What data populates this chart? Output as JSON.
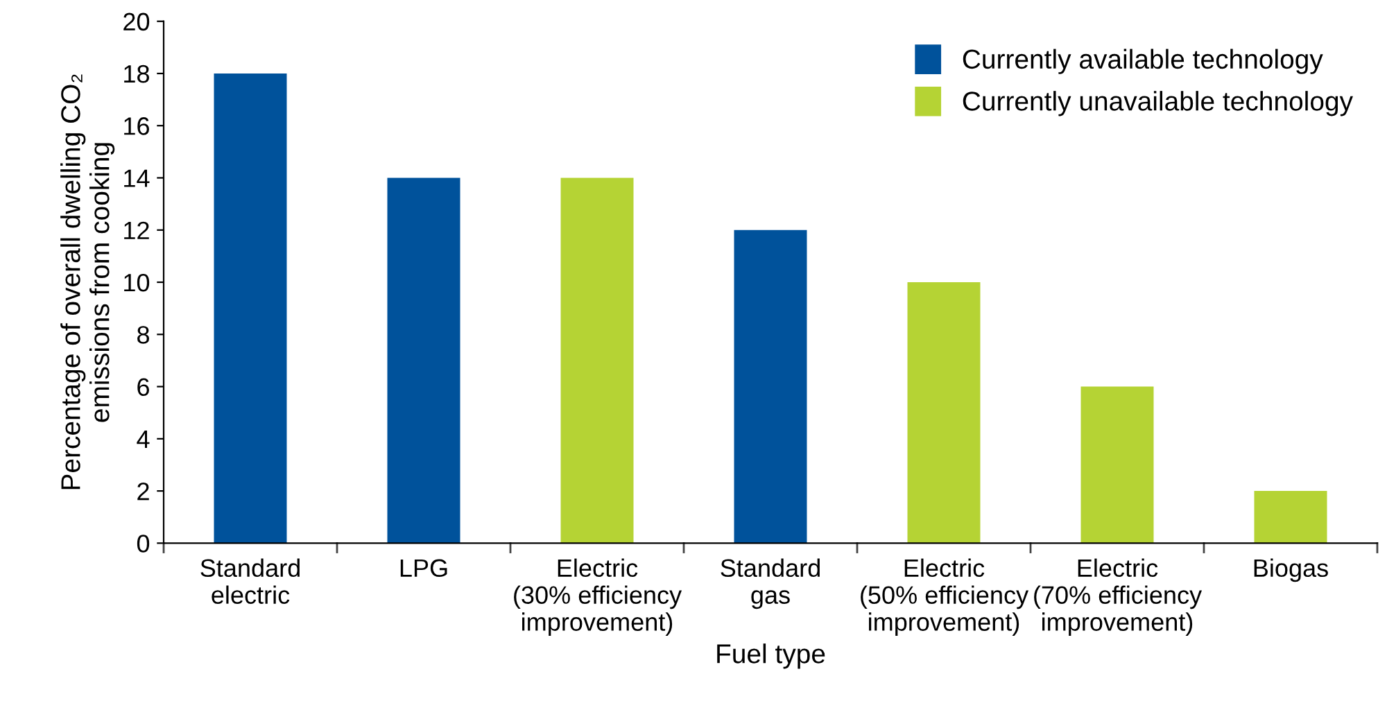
{
  "chart_data": {
    "type": "bar",
    "xlabel": "Fuel type",
    "ylabel": "Percentage of overall dwelling CO₂\nemissions from cooking",
    "categories": [
      "Standard\nelectric",
      "LPG",
      "Electric\n(30% efficiency\nimprovement)",
      "Standard\ngas",
      "Electric\n(50% efficiency\nimprovement)",
      "Electric\n(70% efficiency\nimprovement)",
      "Biogas"
    ],
    "series": [
      {
        "name": "Currently available technology",
        "color": "#00529b",
        "values": [
          18,
          14,
          null,
          12,
          null,
          null,
          null
        ]
      },
      {
        "name": "Currently unavailable technology",
        "color": "#b5d334",
        "values": [
          null,
          null,
          14,
          null,
          10,
          6,
          2
        ]
      }
    ],
    "ylim": [
      0,
      20
    ],
    "yticks": [
      0,
      2,
      4,
      6,
      8,
      10,
      12,
      14,
      16,
      18,
      20
    ],
    "grid": false,
    "legend": "top right"
  }
}
